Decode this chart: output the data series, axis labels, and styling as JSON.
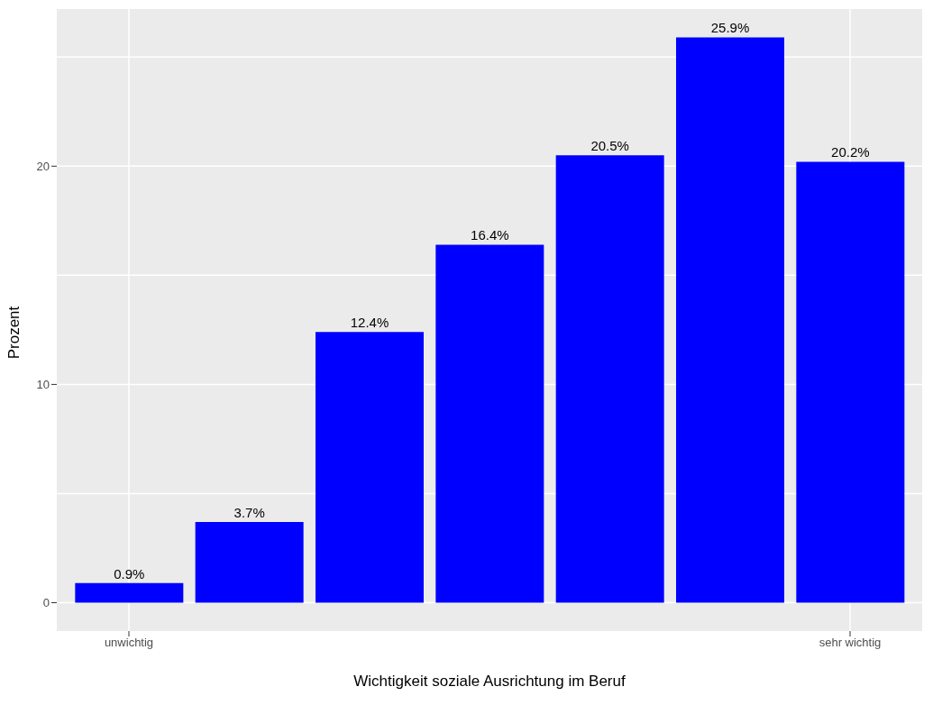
{
  "chart_data": {
    "type": "bar",
    "xlabel": "Wichtigkeit soziale Ausrichtung im Beruf",
    "ylabel": "Prozent",
    "categories": [
      "unwichtig",
      null,
      null,
      null,
      null,
      null,
      "sehr wichtig"
    ],
    "values": [
      0.9,
      3.7,
      12.4,
      16.4,
      20.5,
      25.9,
      20.2
    ],
    "value_labels": [
      "0.9%",
      "3.7%",
      "12.4%",
      "16.4%",
      "20.5%",
      "25.9%",
      "20.2%"
    ],
    "color": "#0000ff",
    "ylim": [
      -1.3,
      27.2
    ],
    "yticks": [
      0,
      10,
      20
    ],
    "grid": true
  }
}
